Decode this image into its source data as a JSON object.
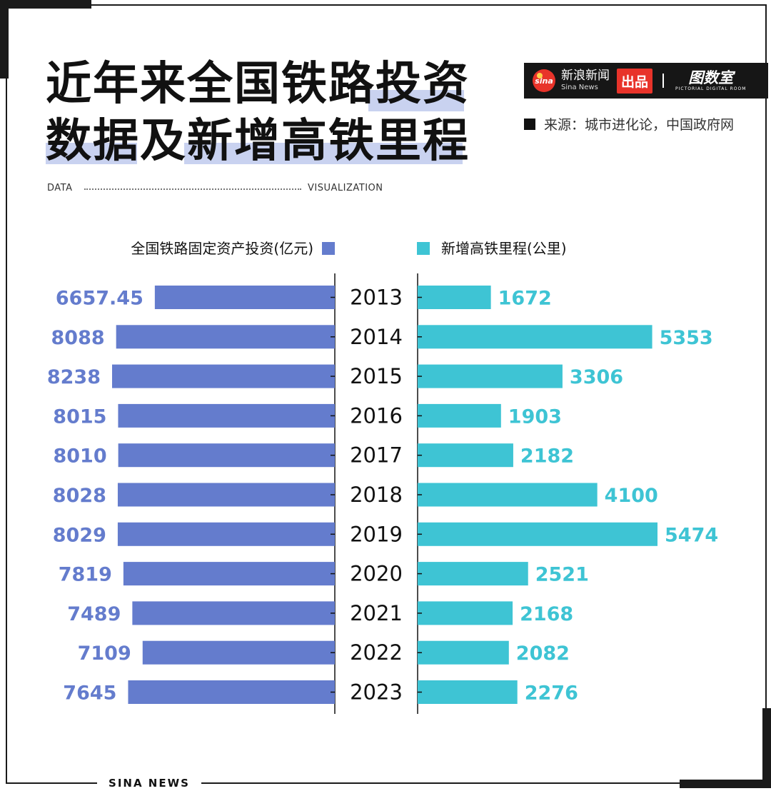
{
  "title": {
    "line1": "近年来全国铁路投资",
    "line2": "数据及新增高铁里程"
  },
  "brand": {
    "logo_text": "sina",
    "name_cn": "新浪新闻",
    "name_en": "Sina News",
    "badge": "出品",
    "room_cn": "图数室",
    "room_en": "PICTORIAL DIGITAL ROOM"
  },
  "source": "来源：城市进化论，中国政府网",
  "rule": {
    "left": "DATA",
    "right": "VISUALIZATION"
  },
  "footer": "SINA NEWS",
  "colors": {
    "investment": "#647ccd",
    "mileage": "#3ec4d4",
    "axis": "#111111"
  },
  "chart_data": {
    "type": "bar",
    "orientation": "horizontal-diverging",
    "categories": [
      "2013",
      "2014",
      "2015",
      "2016",
      "2017",
      "2018",
      "2019",
      "2020",
      "2021",
      "2022",
      "2023"
    ],
    "series": [
      {
        "name": "全国铁路固定资产投资(亿元)",
        "side": "left",
        "values": [
          6657.45,
          8088,
          8238,
          8015,
          8010,
          8028,
          8029,
          7819,
          7489,
          7109,
          7645
        ],
        "labels": [
          "6657.45",
          "8088",
          "8238",
          "8015",
          "8010",
          "8028",
          "8029",
          "7819",
          "7489",
          "7109",
          "7645"
        ],
        "color": "#647ccd"
      },
      {
        "name": "新增高铁里程(公里)",
        "side": "right",
        "values": [
          1672,
          5353,
          3306,
          1903,
          2182,
          4100,
          5474,
          2521,
          2168,
          2082,
          2276
        ],
        "labels": [
          "1672",
          "5353",
          "3306",
          "1903",
          "2182",
          "4100",
          "5474",
          "2521",
          "2168",
          "2082",
          "2276"
        ],
        "color": "#3ec4d4"
      }
    ],
    "legend_position": "top",
    "grid": false
  }
}
